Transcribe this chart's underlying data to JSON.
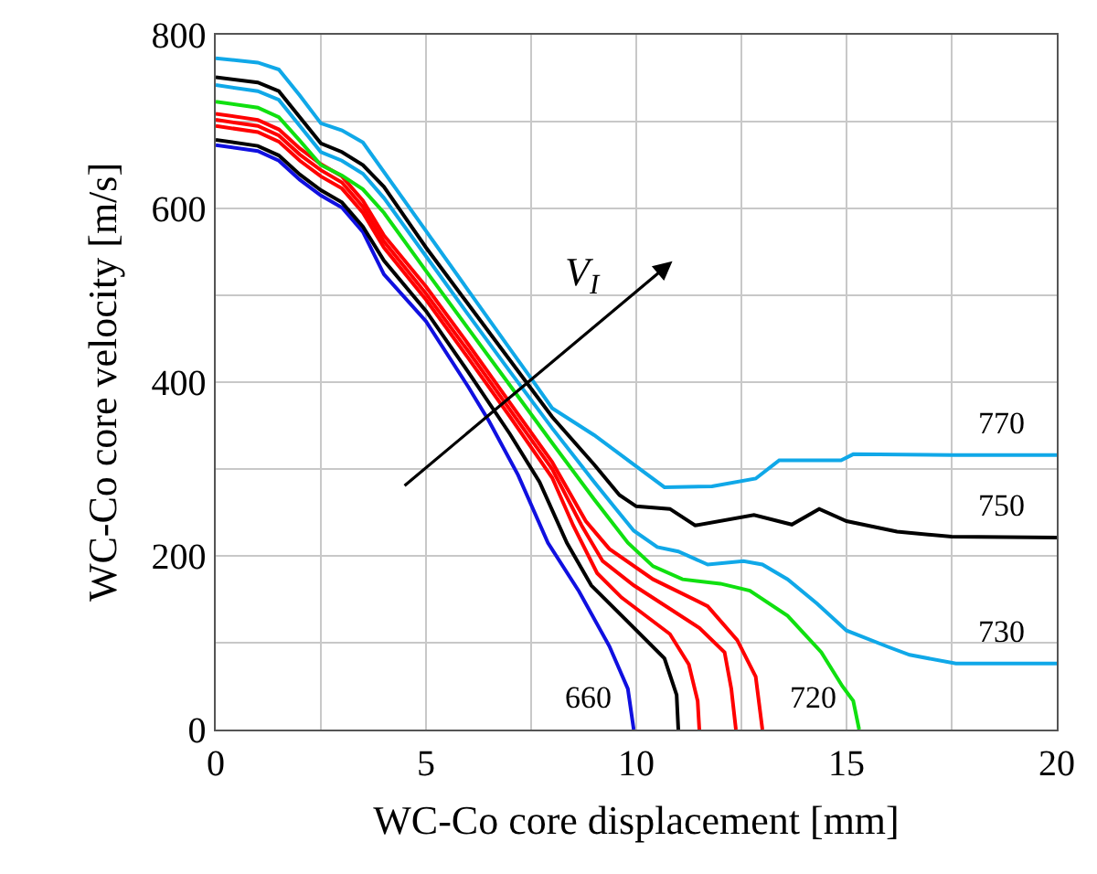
{
  "chart_data": {
    "type": "line",
    "xlabel": "WC-Co core displacement [mm]",
    "ylabel": "WC-Co core velocity [m/s]",
    "xlim": [
      0,
      20
    ],
    "ylim": [
      0,
      800
    ],
    "xticks": [
      0,
      {
        "value": 2.5,
        "label": null
      },
      5,
      {
        "value": 7.5,
        "label": null
      },
      10,
      {
        "value": 12.5,
        "label": null
      },
      15,
      {
        "value": 17.5,
        "label": null
      },
      20
    ],
    "yticks": [
      0,
      {
        "value": 100,
        "label": null
      },
      200,
      {
        "value": 300,
        "label": null
      },
      400,
      {
        "value": 500,
        "label": null
      },
      600,
      {
        "value": 700,
        "label": null
      },
      800
    ],
    "grid": true,
    "legend": false,
    "marker": "none",
    "line_style": "solid",
    "series": [
      {
        "name": "660",
        "color": "#1010e0",
        "x": [
          0,
          1,
          1.5,
          2,
          2.5,
          3,
          3.5,
          4,
          5,
          6,
          6.5,
          7.19,
          7.9,
          8.64,
          9.36,
          9.8,
          9.94
        ],
        "values": [
          673,
          666,
          655,
          633,
          615,
          601,
          573,
          524,
          470,
          395,
          355,
          293,
          215,
          159,
          96,
          47,
          0
        ]
      },
      {
        "color": "#000000",
        "x": [
          0,
          1,
          1.5,
          2,
          2.5,
          3,
          3.5,
          4,
          5,
          6,
          7,
          7.7,
          8.35,
          8.93,
          9.8,
          10.67,
          10.96,
          11
        ],
        "values": [
          679,
          672,
          661,
          639,
          621,
          607,
          579,
          540,
          482,
          412,
          340,
          285,
          215,
          166,
          124,
          82,
          40,
          0
        ]
      },
      {
        "color": "#ff0000",
        "x": [
          0,
          1,
          1.5,
          2,
          2.5,
          3,
          3.5,
          4,
          5,
          6,
          7,
          8,
          8.5,
          9.07,
          9.65,
          10.8,
          11.25,
          11.46,
          11.5
        ],
        "values": [
          695,
          688,
          677,
          655,
          637,
          623,
          595,
          555,
          495,
          428,
          360,
          290,
          235,
          180,
          152,
          110,
          75,
          33,
          0
        ]
      },
      {
        "color": "#ff0000",
        "x": [
          0,
          1,
          1.5,
          2,
          2.5,
          3,
          3.5,
          4,
          5,
          6,
          7,
          8,
          8.7,
          9.2,
          9.94,
          11.5,
          12.1,
          12.26,
          12.37
        ],
        "values": [
          702,
          695,
          684,
          662,
          644,
          630,
          602,
          562,
          502,
          436,
          368,
          300,
          235,
          194,
          166,
          117,
          89,
          47,
          0
        ]
      },
      {
        "color": "#ff0000",
        "x": [
          0,
          1,
          1.5,
          2,
          2.5,
          3,
          3.5,
          4,
          5,
          6,
          7,
          8,
          8.8,
          9.36,
          10.4,
          11.7,
          12.4,
          12.84,
          13
        ],
        "values": [
          709,
          702,
          691,
          669,
          651,
          637,
          609,
          569,
          510,
          444,
          376,
          308,
          240,
          208,
          173,
          142,
          103,
          61,
          0
        ]
      },
      {
        "name": "720",
        "color": "#10e010",
        "x": [
          0,
          1,
          1.5,
          2,
          2.5,
          3,
          3.5,
          4,
          5,
          6,
          7,
          8,
          9,
          9.8,
          10.4,
          11.1,
          12,
          12.7,
          13.6,
          14.4,
          14.9,
          15.16,
          15.3
        ],
        "values": [
          723,
          716,
          705,
          678,
          650,
          638,
          622,
          595,
          528,
          462,
          396,
          330,
          265,
          215,
          188,
          173,
          168,
          160,
          131,
          89,
          50,
          33,
          0
        ]
      },
      {
        "name": "730",
        "color": "#10a8e8",
        "x": [
          0,
          1,
          1.5,
          2,
          2.5,
          3,
          3.5,
          4,
          5,
          6,
          7,
          8,
          9,
          9.5,
          9.94,
          10.5,
          11,
          11.7,
          12.55,
          13,
          13.6,
          14.3,
          15,
          16,
          16.5,
          17.6,
          20
        ],
        "values": [
          742,
          735,
          725,
          695,
          665,
          655,
          640,
          612,
          545,
          478,
          412,
          347,
          285,
          255,
          229,
          210,
          205,
          190,
          194,
          190,
          173,
          145,
          114,
          95,
          86,
          76,
          76
        ]
      },
      {
        "name": "750",
        "color": "#000000",
        "x": [
          0,
          1,
          1.5,
          2,
          2.5,
          3,
          3.5,
          4,
          5,
          6,
          7,
          8,
          9,
          9.6,
          10,
          10.8,
          11.4,
          12.8,
          13.7,
          14.35,
          15,
          16.2,
          17.5,
          20
        ],
        "values": [
          751,
          745,
          735,
          705,
          675,
          665,
          650,
          625,
          555,
          490,
          425,
          360,
          305,
          270,
          257,
          254,
          235,
          247,
          236,
          254,
          240,
          228,
          222,
          221
        ]
      },
      {
        "name": "770",
        "color": "#10a8e8",
        "x": [
          0,
          1,
          1.5,
          2,
          2.5,
          3,
          3.5,
          5,
          6,
          7,
          7.55,
          8,
          9,
          10,
          10.67,
          11.8,
          12.84,
          13.4,
          14.87,
          15.16,
          17.5,
          20
        ],
        "values": [
          773,
          768,
          760,
          730,
          698,
          690,
          676,
          574,
          506,
          438,
          401,
          370,
          339,
          303,
          279,
          280,
          289,
          310,
          310,
          317,
          316,
          316
        ]
      }
    ],
    "annotations": [
      "V$_{I}$"
    ]
  }
}
